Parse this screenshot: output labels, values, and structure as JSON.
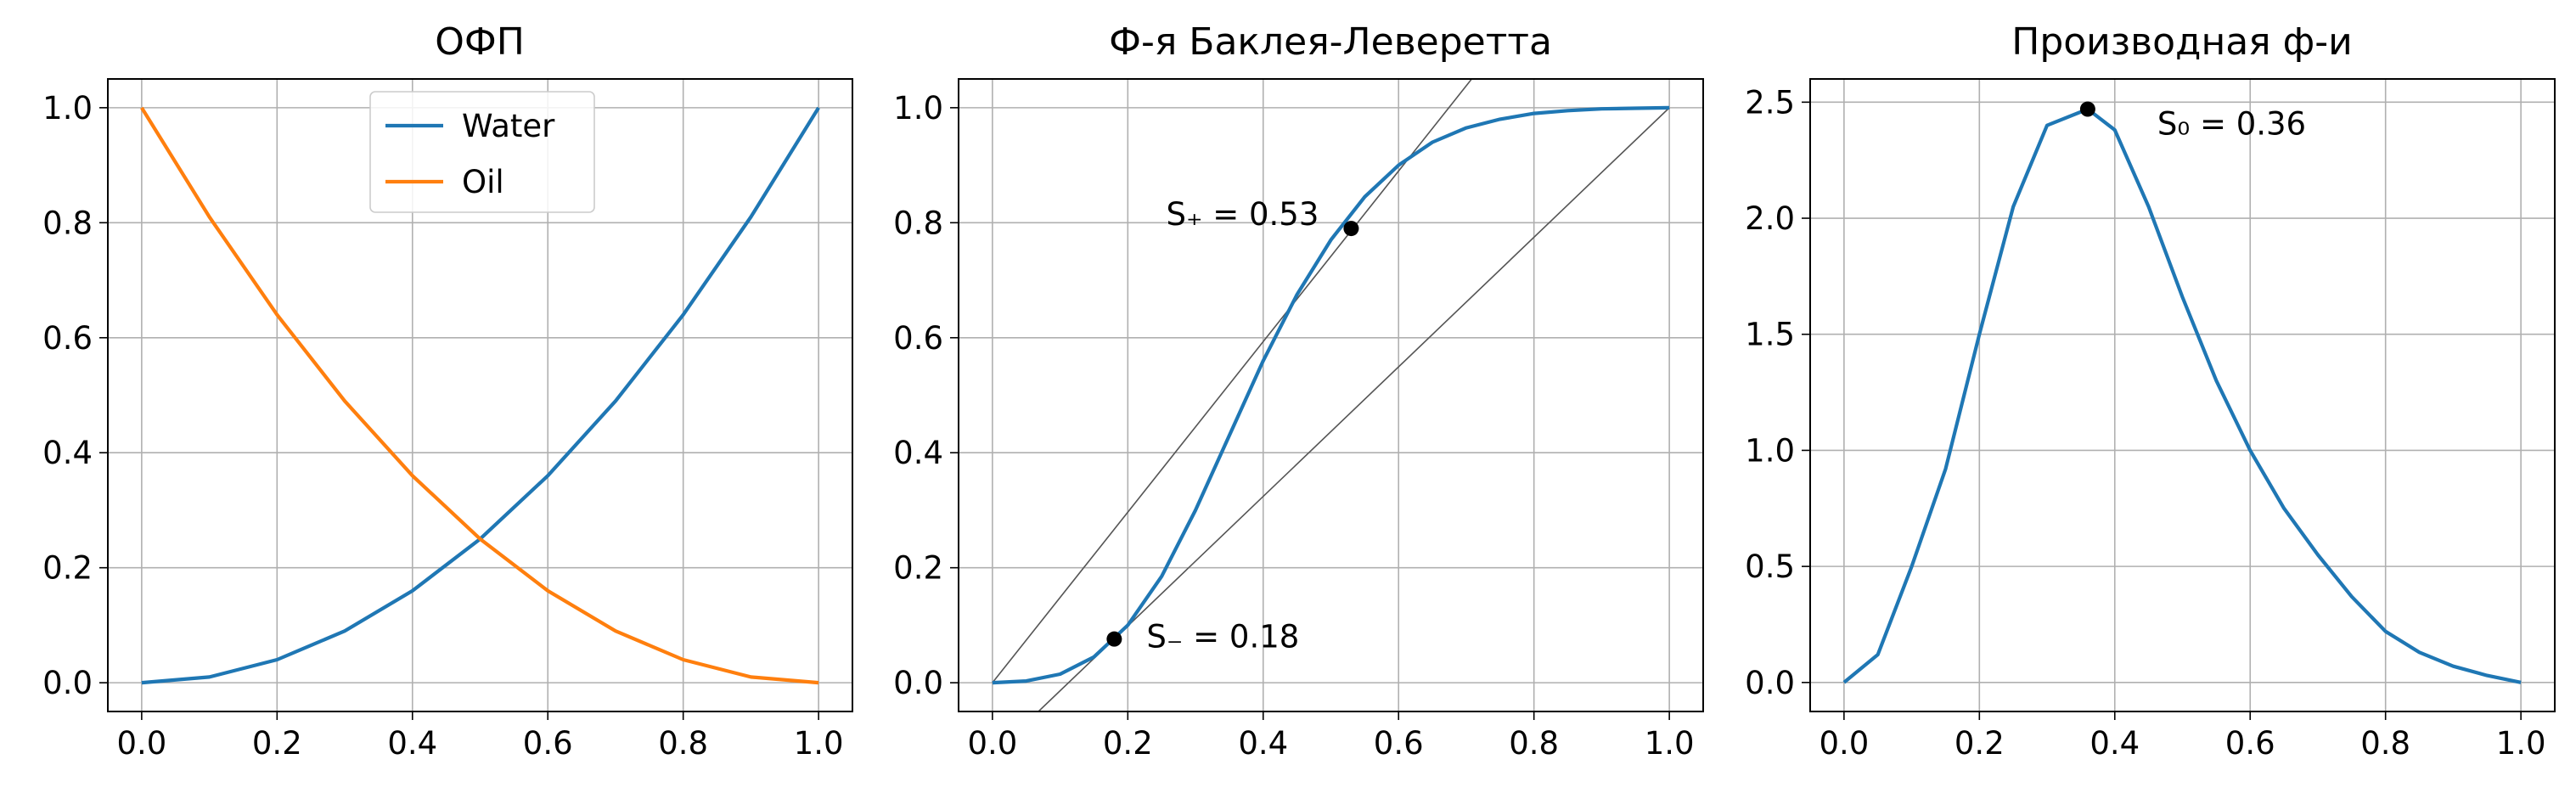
{
  "colors": {
    "water": "#1f77b4",
    "oil": "#ff7f0e",
    "grid": "#b0b0b0",
    "helper_line": "#555555"
  },
  "chart_data": [
    {
      "type": "line",
      "title": "ОФП",
      "xlabel": "",
      "ylabel": "",
      "xlim": [
        -0.05,
        1.05
      ],
      "ylim": [
        -0.05,
        1.05
      ],
      "xticks": [
        "0.0",
        "0.2",
        "0.4",
        "0.6",
        "0.8",
        "1.0"
      ],
      "yticks": [
        "0.0",
        "0.2",
        "0.4",
        "0.6",
        "0.8",
        "1.0"
      ],
      "grid": true,
      "legend": {
        "placement": "upper center",
        "entries": [
          "Water",
          "Oil"
        ]
      },
      "series": [
        {
          "name": "Water",
          "color": "#1f77b4",
          "x": [
            0,
            0.1,
            0.2,
            0.3,
            0.4,
            0.5,
            0.6,
            0.7,
            0.8,
            0.9,
            1.0
          ],
          "y": [
            0,
            0.01,
            0.04,
            0.09,
            0.16,
            0.25,
            0.36,
            0.49,
            0.64,
            0.81,
            1.0
          ]
        },
        {
          "name": "Oil",
          "color": "#ff7f0e",
          "x": [
            0,
            0.1,
            0.2,
            0.3,
            0.4,
            0.5,
            0.6,
            0.7,
            0.8,
            0.9,
            1.0
          ],
          "y": [
            1.0,
            0.81,
            0.64,
            0.49,
            0.36,
            0.25,
            0.16,
            0.09,
            0.04,
            0.01,
            0
          ]
        }
      ]
    },
    {
      "type": "line",
      "title": "Ф-я Баклея-Леверетта",
      "xlabel": "",
      "ylabel": "",
      "xlim": [
        -0.05,
        1.05
      ],
      "ylim": [
        -0.05,
        1.05
      ],
      "xticks": [
        "0.0",
        "0.2",
        "0.4",
        "0.6",
        "0.8",
        "1.0"
      ],
      "yticks": [
        "0.0",
        "0.2",
        "0.4",
        "0.6",
        "0.8",
        "1.0"
      ],
      "grid": true,
      "series": [
        {
          "color": "#1f77b4",
          "x": [
            0,
            0.05,
            0.1,
            0.15,
            0.2,
            0.25,
            0.3,
            0.35,
            0.4,
            0.45,
            0.5,
            0.55,
            0.6,
            0.65,
            0.7,
            0.75,
            0.8,
            0.85,
            0.9,
            0.95,
            1.0
          ],
          "y": [
            0,
            0.003,
            0.015,
            0.045,
            0.1,
            0.185,
            0.3,
            0.43,
            0.56,
            0.675,
            0.77,
            0.845,
            0.9,
            0.94,
            0.965,
            0.98,
            0.99,
            0.995,
            0.998,
            0.999,
            1.0
          ]
        }
      ],
      "reference_lines": [
        {
          "x": [
            0,
            0.708
          ],
          "y": [
            0,
            1.05
          ]
        },
        {
          "x": [
            0.068,
            1.0
          ],
          "y": [
            -0.05,
            1.0
          ]
        }
      ],
      "points": [
        {
          "x": 0.18,
          "y": 0.076,
          "label": "S₋ = 0.18"
        },
        {
          "x": 0.53,
          "y": 0.79,
          "label": "S₊ = 0.53"
        }
      ]
    },
    {
      "type": "line",
      "title": "Производная ф-и",
      "xlabel": "",
      "ylabel": "",
      "xlim": [
        -0.05,
        1.05
      ],
      "ylim": [
        -0.125,
        2.6
      ],
      "xticks": [
        "0.0",
        "0.2",
        "0.4",
        "0.6",
        "0.8",
        "1.0"
      ],
      "yticks": [
        "0.0",
        "0.5",
        "1.0",
        "1.5",
        "2.0",
        "2.5"
      ],
      "grid": true,
      "series": [
        {
          "color": "#1f77b4",
          "x": [
            0,
            0.05,
            0.1,
            0.15,
            0.2,
            0.25,
            0.3,
            0.36,
            0.4,
            0.45,
            0.5,
            0.55,
            0.6,
            0.65,
            0.7,
            0.75,
            0.8,
            0.85,
            0.9,
            0.95,
            1.0
          ],
          "y": [
            0,
            0.12,
            0.5,
            0.92,
            1.5,
            2.05,
            2.4,
            2.47,
            2.38,
            2.05,
            1.66,
            1.3,
            1.0,
            0.75,
            0.55,
            0.37,
            0.22,
            0.13,
            0.07,
            0.03,
            0
          ]
        }
      ],
      "points": [
        {
          "x": 0.36,
          "y": 2.47,
          "label": "S₀ = 0.36"
        }
      ]
    }
  ]
}
